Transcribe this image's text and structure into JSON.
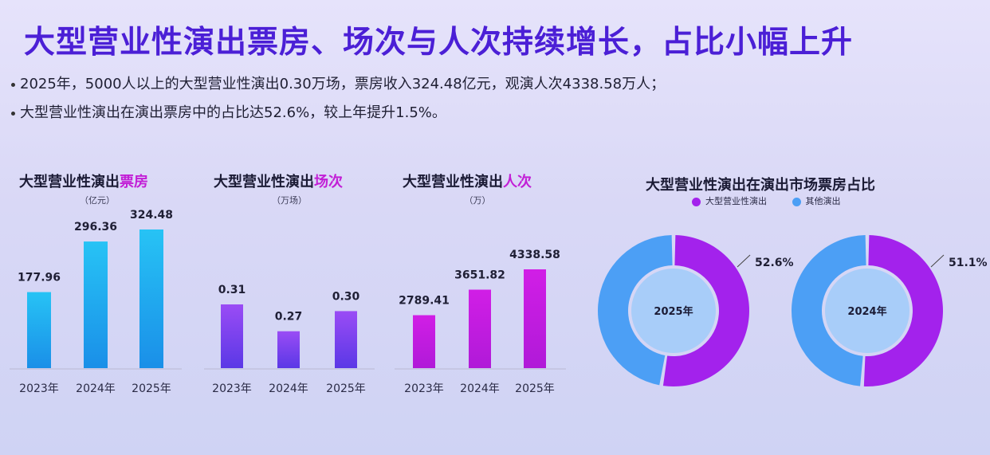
{
  "title": "大型营业性演出票房、场次与人次持续增长，占比小幅上升",
  "bullets": [
    "2025年，5000人以上的大型营业性演出0.30万场，票房收入324.48亿元，观演人次4338.58万人；",
    "大型营业性演出在演出票房中的占比达52.6%，较上年提升1.5%。"
  ],
  "colors": {
    "revenue": "#1aa8ec",
    "shows": "#7a3ff0",
    "attendance": "#c51ee0",
    "large": "#a322ec",
    "other": "#4c9ff5",
    "center": "#a8cdf9"
  },
  "chart_data": [
    {
      "type": "bar",
      "title_main": "大型营业性演出",
      "title_hl": "票房",
      "unit": "（亿元）",
      "categories": [
        "2023年",
        "2024年",
        "2025年"
      ],
      "values": [
        177.96,
        296.36,
        324.48
      ],
      "labels": [
        "177.96",
        "296.36",
        "324.48"
      ]
    },
    {
      "type": "bar",
      "title_main": "大型营业性演出",
      "title_hl": "场次",
      "unit": "（万场）",
      "categories": [
        "2023年",
        "2024年",
        "2025年"
      ],
      "values": [
        0.31,
        0.27,
        0.3
      ],
      "labels": [
        "0.31",
        "0.27",
        "0.30"
      ]
    },
    {
      "type": "bar",
      "title_main": "大型营业性演出",
      "title_hl": "人次",
      "unit": "（万）",
      "categories": [
        "2023年",
        "2024年",
        "2025年"
      ],
      "values": [
        2789.41,
        3651.82,
        4338.58
      ],
      "labels": [
        "2789.41",
        "3651.82",
        "4338.58"
      ]
    },
    {
      "type": "pie",
      "title": "大型营业性演出在演出市场票房占比",
      "legend": [
        "大型营业性演出",
        "其他演出"
      ],
      "donuts": [
        {
          "center_label": "2025年",
          "value": 52.6,
          "label": "52.6%"
        },
        {
          "center_label": "2024年",
          "value": 51.1,
          "label": "51.1%"
        }
      ]
    }
  ]
}
